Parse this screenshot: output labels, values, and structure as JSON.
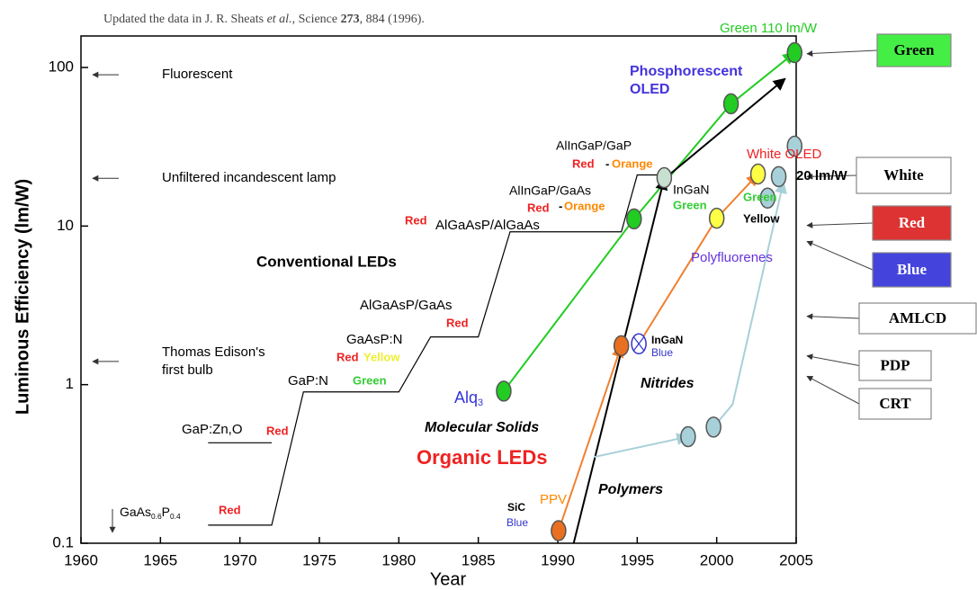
{
  "chart_data": {
    "type": "line",
    "log_y": true,
    "title": [
      "Updated the data in J. R. Sheats ",
      "et al.",
      ", Science ",
      "273",
      ", 884 (1996)."
    ],
    "xlabel": "Year",
    "ylabel": "Luminous Efficiency (lm/W)",
    "xlim": [
      1960,
      2005
    ],
    "xticks": [
      1960,
      1965,
      1970,
      1975,
      1980,
      1985,
      1990,
      1995,
      2000,
      2005
    ],
    "ylim": [
      0.1,
      158
    ],
    "yticks": [
      0.1,
      1,
      10,
      100
    ],
    "series": [
      {
        "color": "#000000",
        "arrow": false,
        "x": [
          1968,
          1972,
          1974,
          1980,
          1982,
          1985,
          1987,
          1994,
          1995,
          1996.7,
          null,
          1968,
          1972
        ],
        "values": [
          0.13,
          0.13,
          0.9,
          0.9,
          2.0,
          2.0,
          9.2,
          9.2,
          21,
          21,
          null,
          0.43,
          0.43
        ]
      },
      {
        "color": "#22cc22",
        "arrow": true,
        "x": [
          1986.6,
          1994.8,
          2000.9,
          2004.9
        ],
        "values": [
          0.91,
          11.1,
          59,
          124
        ]
      },
      {
        "color": "#f08030",
        "arrow": true,
        "x": [
          1990.05,
          1994.0,
          null,
          1995.1,
          2000.0,
          2002.6
        ],
        "values": [
          0.12,
          1.76,
          null,
          1.81,
          11.2,
          21.3
        ]
      },
      {
        "color": "#000000",
        "arrow": true,
        "x": [
          1991,
          1996.7,
          null,
          1997,
          2004.3
        ],
        "values": [
          0.1,
          20,
          null,
          21,
          85
        ]
      },
      {
        "color": "#a8d0d8",
        "arrow": true,
        "x": [
          1992.3,
          1998.2,
          null,
          1999.8,
          2001,
          2004.2
        ],
        "values": [
          0.35,
          0.47,
          null,
          0.54,
          0.75,
          19
        ]
      }
    ],
    "points": [
      {
        "x": 1986.6,
        "y": 0.91,
        "color": "#22cc22"
      },
      {
        "x": 1994.8,
        "y": 11.1,
        "color": "#22cc22"
      },
      {
        "x": 2000.9,
        "y": 59,
        "color": "#22cc22"
      },
      {
        "x": 2004.9,
        "y": 124,
        "color": "#22cc22"
      },
      {
        "x": 1990.05,
        "y": 0.12,
        "color": "#e87020"
      },
      {
        "x": 1994.0,
        "y": 1.76,
        "color": "#e87020"
      },
      {
        "x": 1995.1,
        "y": 1.81,
        "color": "#ffffff",
        "stroke": "#3333cc"
      },
      {
        "x": 1996.7,
        "y": 20.2,
        "color": "#c8e0d0"
      },
      {
        "x": 2000.0,
        "y": 11.2,
        "color": "#ffff44"
      },
      {
        "x": 2002.6,
        "y": 21.3,
        "color": "#ffff44"
      },
      {
        "x": 2003.2,
        "y": 15.0,
        "color": "#a8d0d8"
      },
      {
        "x": 2003.9,
        "y": 20.5,
        "color": "#a8d0d8"
      },
      {
        "x": 2004.9,
        "y": 31.9,
        "color": "#a8d0d8"
      },
      {
        "x": 1998.2,
        "y": 0.47,
        "color": "#a8d0d8"
      },
      {
        "x": 1999.8,
        "y": 0.54,
        "color": "#a8d0d8"
      }
    ],
    "references": [
      {
        "lines": [
          "Fluorescent"
        ],
        "value": 90
      },
      {
        "lines": [
          "Unfiltered incandescent lamp"
        ],
        "value": 20
      },
      {
        "lines": [
          "Thomas Edison's",
          "first bulb"
        ],
        "value": 1.4
      }
    ],
    "boxes": [
      {
        "label": "Green",
        "value": 122,
        "fill": "#44ee44",
        "text_color": "#000000"
      },
      {
        "label": "White",
        "value": 20.5,
        "fill": "#ffffff",
        "text_color": "#000000"
      },
      {
        "label": "Red",
        "value": 10.1,
        "fill": "#dd3333",
        "text_color": "#ffffff"
      },
      {
        "label": "Blue",
        "value": 8.0,
        "fill": "#4444dd",
        "text_color": "#ffffff"
      },
      {
        "label": "AMLCD",
        "value": 2.7,
        "fill": "#ffffff",
        "text_color": "#000000"
      },
      {
        "label": "PDP",
        "value": 1.52,
        "fill": "#ffffff",
        "text_color": "#000000"
      },
      {
        "label": "CRT",
        "value": 1.13,
        "fill": "#ffffff",
        "text_color": "#000000"
      }
    ],
    "annotations": [
      {
        "text": "Green 110 lm/W",
        "color": "#22cc22"
      },
      {
        "text": "Phosphorescent",
        "color": "#4433dd"
      },
      {
        "text": "OLED",
        "color": "#4433dd"
      },
      {
        "text": "AlInGaP/GaP",
        "color": "#000000"
      },
      {
        "text": "Red",
        "color": "#ee2222"
      },
      {
        "text": "-",
        "color": "#000000"
      },
      {
        "text": "Orange",
        "color": "#ff8800"
      },
      {
        "text": "AlInGaP/GaAs",
        "color": "#000000"
      },
      {
        "text": "Red",
        "color": "#ee2222"
      },
      {
        "text": "-",
        "color": "#000000"
      },
      {
        "text": "Orange",
        "color": "#ff8800"
      },
      {
        "text": "Red",
        "color": "#ee2222"
      },
      {
        "text": "AlGaAsP/AlGaAs",
        "color": "#000000"
      },
      {
        "text": "InGaN",
        "color": "#000000"
      },
      {
        "text": "Green",
        "color": "#33cc33"
      },
      {
        "text": "White OLED",
        "color": "#ee2222"
      },
      {
        "text": "20 lm/W",
        "color": "#000000"
      },
      {
        "text": "Green",
        "color": "#33cc33"
      },
      {
        "text": "Yellow",
        "color": "#000000"
      },
      {
        "text": "Polyfluorenes",
        "color": "#6633dd"
      },
      {
        "text": "Conventional LEDs",
        "color": "#000000"
      },
      {
        "text": "AlGaAsP/GaAs",
        "color": "#000000"
      },
      {
        "text": "Red",
        "color": "#ee2222"
      },
      {
        "text": "GaAsP:N",
        "color": "#000000"
      },
      {
        "text": "Red",
        "color": "#ee2222"
      },
      {
        "text": "Yellow",
        "color": "#eeee33"
      },
      {
        "text": "GaP:N",
        "color": "#000000"
      },
      {
        "text": "Green",
        "color": "#33cc33"
      },
      {
        "text": "InGaN",
        "color": "#000000"
      },
      {
        "text": "Blue",
        "color": "#3333cc"
      },
      {
        "text": "Nitrides",
        "color": "#000000"
      },
      {
        "parts": [
          "Alq",
          "3"
        ],
        "color": "#3333dd"
      },
      {
        "text": "Molecular Solids",
        "color": "#000000"
      },
      {
        "text": "GaP:Zn,O",
        "color": "#000000"
      },
      {
        "text": "Red",
        "color": "#ee2222"
      },
      {
        "text": "Organic LEDs",
        "color": "#ee2222"
      },
      {
        "text": "Polymers",
        "color": "#000000"
      },
      {
        "text": "PPV",
        "color": "#ff8800"
      },
      {
        "text": "SiC",
        "color": "#000000"
      },
      {
        "text": "Blue",
        "color": "#3333cc"
      },
      {
        "parts": [
          "GaAs",
          "0.6",
          "P",
          "0.4"
        ],
        "color": "#000000"
      },
      {
        "text": "Red",
        "color": "#ee2222"
      }
    ]
  }
}
